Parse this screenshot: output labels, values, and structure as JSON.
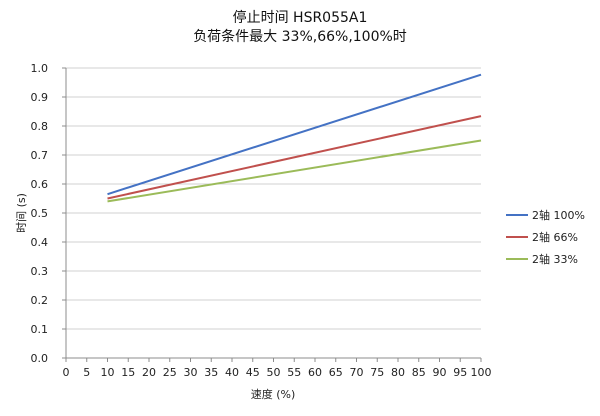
{
  "chart_data": {
    "type": "line",
    "title": "停止时间 HSR055A1",
    "subtitle": "负荷条件最大 33%,66%,100%时",
    "xlabel": "速度 (%)",
    "ylabel": "时间 (s)",
    "xlim": [
      0,
      100
    ],
    "ylim": [
      0.0,
      1.0
    ],
    "x_ticks": [
      "0",
      "5",
      "10",
      "15",
      "20",
      "25",
      "30",
      "35",
      "40",
      "45",
      "50",
      "55",
      "60",
      "65",
      "70",
      "75",
      "80",
      "85",
      "90",
      "95",
      "100"
    ],
    "y_ticks": [
      "0.0",
      "0.1",
      "0.2",
      "0.3",
      "0.4",
      "0.5",
      "0.6",
      "0.7",
      "0.8",
      "0.9",
      "1.0"
    ],
    "grid": "horizontal",
    "legend": "right",
    "series": [
      {
        "name": "2轴  100%",
        "color": "#4472c4",
        "x": [
          10,
          100
        ],
        "y": [
          0.565,
          0.977
        ]
      },
      {
        "name": "2轴  66%",
        "color": "#c0504d",
        "x": [
          10,
          100
        ],
        "y": [
          0.55,
          0.834
        ]
      },
      {
        "name": "2轴  33%",
        "color": "#9bbb59",
        "x": [
          10,
          100
        ],
        "y": [
          0.54,
          0.75
        ]
      }
    ]
  }
}
